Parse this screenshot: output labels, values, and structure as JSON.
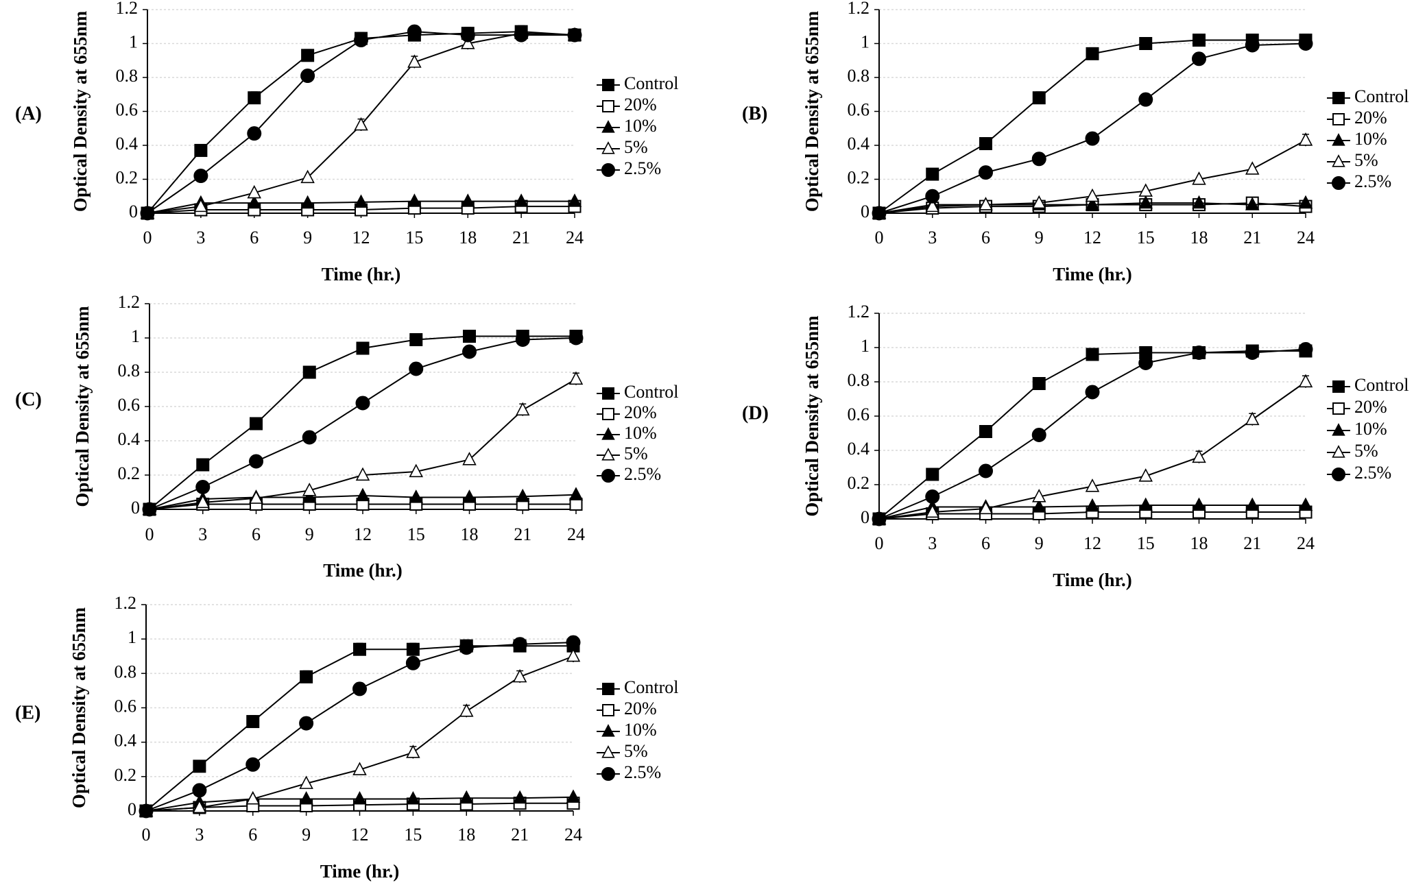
{
  "figure": {
    "series_styles": [
      {
        "name": "Control",
        "marker": "square",
        "fill": "#000000"
      },
      {
        "name": "20%",
        "marker": "square",
        "fill": "#ffffff"
      },
      {
        "name": "10%",
        "marker": "triangle",
        "fill": "#000000"
      },
      {
        "name": "5%",
        "marker": "triangle",
        "fill": "#ffffff"
      },
      {
        "name": "2.5%",
        "marker": "circle",
        "fill": "#000000"
      }
    ]
  },
  "chart_data": [
    {
      "type": "line",
      "panel": "(A)",
      "xlabel": "Time (hr.)",
      "ylabel": "Optical Density at 655nm",
      "x": [
        0,
        3,
        6,
        9,
        12,
        15,
        18,
        21,
        24
      ],
      "xticks": [
        "0",
        "3",
        "6",
        "9",
        "12",
        "15",
        "18",
        "21",
        "24"
      ],
      "yticks": [
        "0",
        "0.2",
        "0.4",
        "0.6",
        "0.8",
        "1",
        "1.2"
      ],
      "ylim": [
        0,
        1.2
      ],
      "grid": true,
      "legend": "right",
      "series": [
        {
          "name": "Control",
          "values": [
            0,
            0.37,
            0.68,
            0.93,
            1.03,
            1.05,
            1.06,
            1.07,
            1.05
          ]
        },
        {
          "name": "20%",
          "values": [
            0,
            0.02,
            0.02,
            0.02,
            0.02,
            0.03,
            0.03,
            0.04,
            0.04
          ]
        },
        {
          "name": "10%",
          "values": [
            0,
            0.06,
            0.06,
            0.06,
            0.065,
            0.07,
            0.07,
            0.07,
            0.07
          ]
        },
        {
          "name": "5%",
          "values": [
            0,
            0.04,
            0.12,
            0.21,
            0.52,
            0.89,
            1.0,
            1.06,
            1.05
          ]
        },
        {
          "name": "2.5%",
          "values": [
            0,
            0.22,
            0.47,
            0.81,
            1.02,
            1.07,
            1.05,
            1.05,
            1.05
          ]
        }
      ]
    },
    {
      "type": "line",
      "panel": "(B)",
      "xlabel": "Time (hr.)",
      "ylabel": "Optical Density at 655nm",
      "x": [
        0,
        3,
        6,
        9,
        12,
        15,
        18,
        21,
        24
      ],
      "xticks": [
        "0",
        "3",
        "6",
        "9",
        "12",
        "15",
        "18",
        "21",
        "24"
      ],
      "yticks": [
        "0",
        "0.2",
        "0.4",
        "0.6",
        "0.8",
        "1",
        "1.2"
      ],
      "ylim": [
        0,
        1.2
      ],
      "grid": true,
      "legend": "right",
      "series": [
        {
          "name": "Control",
          "values": [
            0,
            0.23,
            0.41,
            0.68,
            0.94,
            1.0,
            1.02,
            1.02,
            1.02
          ]
        },
        {
          "name": "20%",
          "values": [
            0,
            0.03,
            0.04,
            0.04,
            0.05,
            0.05,
            0.05,
            0.06,
            0.04
          ]
        },
        {
          "name": "10%",
          "values": [
            0,
            0.05,
            0.05,
            0.05,
            0.05,
            0.06,
            0.06,
            0.05,
            0.06
          ]
        },
        {
          "name": "5%",
          "values": [
            0,
            0.04,
            0.05,
            0.06,
            0.1,
            0.13,
            0.2,
            0.26,
            0.43
          ]
        },
        {
          "name": "2.5%",
          "values": [
            0,
            0.1,
            0.24,
            0.32,
            0.44,
            0.67,
            0.91,
            0.99,
            1.0
          ]
        }
      ]
    },
    {
      "type": "line",
      "panel": "(C)",
      "xlabel": "Time (hr.)",
      "ylabel": "Optical Density at 655nm",
      "x": [
        0,
        3,
        6,
        9,
        12,
        15,
        18,
        21,
        24
      ],
      "xticks": [
        "0",
        "3",
        "6",
        "9",
        "12",
        "15",
        "18",
        "21",
        "24"
      ],
      "yticks": [
        "0",
        "0.2",
        "0.4",
        "0.6",
        "0.8",
        "1",
        "1.2"
      ],
      "ylim": [
        0,
        1.2
      ],
      "grid": true,
      "legend": "right",
      "series": [
        {
          "name": "Control",
          "values": [
            0,
            0.26,
            0.5,
            0.8,
            0.94,
            0.99,
            1.01,
            1.01,
            1.01
          ]
        },
        {
          "name": "20%",
          "values": [
            0,
            0.03,
            0.03,
            0.03,
            0.03,
            0.03,
            0.03,
            0.03,
            0.03
          ]
        },
        {
          "name": "10%",
          "values": [
            0,
            0.06,
            0.07,
            0.07,
            0.08,
            0.07,
            0.07,
            0.075,
            0.085
          ]
        },
        {
          "name": "5%",
          "values": [
            0,
            0.04,
            0.065,
            0.11,
            0.2,
            0.22,
            0.29,
            0.58,
            0.76
          ]
        },
        {
          "name": "2.5%",
          "values": [
            0,
            0.13,
            0.28,
            0.42,
            0.62,
            0.82,
            0.92,
            0.99,
            1.0
          ]
        }
      ]
    },
    {
      "type": "line",
      "panel": "(D)",
      "xlabel": "Time (hr.)",
      "ylabel": "Optical Density at 655nm",
      "x": [
        0,
        3,
        6,
        9,
        12,
        15,
        18,
        21,
        24
      ],
      "xticks": [
        "0",
        "3",
        "6",
        "9",
        "12",
        "15",
        "18",
        "21",
        "24"
      ],
      "yticks": [
        "0",
        "0.2",
        "0.4",
        "0.6",
        "0.8",
        "1",
        "1.2"
      ],
      "ylim": [
        0,
        1.2
      ],
      "grid": true,
      "legend": "right",
      "series": [
        {
          "name": "Control",
          "values": [
            0,
            0.26,
            0.51,
            0.79,
            0.96,
            0.97,
            0.97,
            0.98,
            0.98
          ]
        },
        {
          "name": "20%",
          "values": [
            0,
            0.03,
            0.03,
            0.03,
            0.04,
            0.04,
            0.04,
            0.04,
            0.04
          ]
        },
        {
          "name": "10%",
          "values": [
            0,
            0.07,
            0.07,
            0.07,
            0.075,
            0.08,
            0.08,
            0.08,
            0.08
          ]
        },
        {
          "name": "5%",
          "values": [
            0,
            0.04,
            0.06,
            0.13,
            0.19,
            0.25,
            0.36,
            0.58,
            0.8
          ]
        },
        {
          "name": "2.5%",
          "values": [
            0,
            0.13,
            0.28,
            0.49,
            0.74,
            0.91,
            0.97,
            0.97,
            0.99
          ]
        }
      ]
    },
    {
      "type": "line",
      "panel": "(E)",
      "xlabel": "Time (hr.)",
      "ylabel": "Optical Density at 655nm",
      "x": [
        0,
        3,
        6,
        9,
        12,
        15,
        18,
        21,
        24
      ],
      "xticks": [
        "0",
        "3",
        "6",
        "9",
        "12",
        "15",
        "18",
        "21",
        "24"
      ],
      "yticks": [
        "0",
        "0.2",
        "0.4",
        "0.6",
        "0.8",
        "1",
        "1.2"
      ],
      "ylim": [
        0,
        1.2
      ],
      "grid": true,
      "legend": "right",
      "series": [
        {
          "name": "Control",
          "values": [
            0,
            0.26,
            0.52,
            0.78,
            0.94,
            0.94,
            0.96,
            0.96,
            0.96
          ]
        },
        {
          "name": "20%",
          "values": [
            0,
            0.02,
            0.03,
            0.03,
            0.035,
            0.04,
            0.04,
            0.045,
            0.045
          ]
        },
        {
          "name": "10%",
          "values": [
            0,
            0.05,
            0.07,
            0.07,
            0.07,
            0.07,
            0.075,
            0.075,
            0.08
          ]
        },
        {
          "name": "5%",
          "values": [
            0,
            0.02,
            0.07,
            0.16,
            0.24,
            0.34,
            0.58,
            0.78,
            0.9
          ]
        },
        {
          "name": "2.5%",
          "values": [
            0,
            0.12,
            0.27,
            0.51,
            0.71,
            0.86,
            0.95,
            0.97,
            0.98
          ]
        }
      ]
    }
  ]
}
